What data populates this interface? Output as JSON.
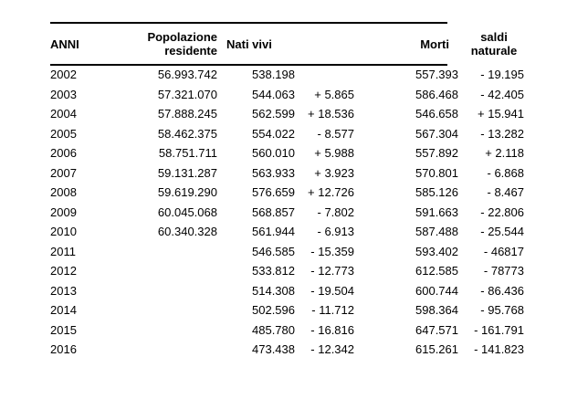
{
  "colors": {
    "background": "#ffffff",
    "text": "#000000",
    "rule": "#000000"
  },
  "table": {
    "headers": {
      "anni": "ANNI",
      "popolazione_line1": "Popolazione",
      "popolazione_line2": "residente",
      "nati_vivi": "Nati vivi",
      "variazione_nati": "",
      "morti": "Morti",
      "saldi_line1": "saldi",
      "saldi_line2": "naturale"
    },
    "rows": [
      {
        "anno": "2002",
        "popolazione": "56.993.742",
        "nati_vivi": "538.198",
        "variazione_nati": "",
        "morti": "557.393",
        "saldo_naturale": "- 19.195"
      },
      {
        "anno": "2003",
        "popolazione": "57.321.070",
        "nati_vivi": "544.063",
        "variazione_nati": "+ 5.865",
        "morti": "586.468",
        "saldo_naturale": "- 42.405"
      },
      {
        "anno": "2004",
        "popolazione": "57.888.245",
        "nati_vivi": "562.599",
        "variazione_nati": "+ 18.536",
        "morti": "546.658",
        "saldo_naturale": "+ 15.941"
      },
      {
        "anno": "2005",
        "popolazione": "58.462.375",
        "nati_vivi": "554.022",
        "variazione_nati": "- 8.577",
        "morti": "567.304",
        "saldo_naturale": "- 13.282"
      },
      {
        "anno": "2006",
        "popolazione": "58.751.711",
        "nati_vivi": "560.010",
        "variazione_nati": "+ 5.988",
        "morti": "557.892",
        "saldo_naturale": "+ 2.118"
      },
      {
        "anno": "2007",
        "popolazione": "59.131.287",
        "nati_vivi": "563.933",
        "variazione_nati": "+ 3.923",
        "morti": "570.801",
        "saldo_naturale": "- 6.868"
      },
      {
        "anno": "2008",
        "popolazione": "59.619.290",
        "nati_vivi": "576.659",
        "variazione_nati": "+ 12.726",
        "morti": "585.126",
        "saldo_naturale": "- 8.467"
      },
      {
        "anno": "2009",
        "popolazione": "60.045.068",
        "nati_vivi": "568.857",
        "variazione_nati": "- 7.802",
        "morti": "591.663",
        "saldo_naturale": "- 22.806"
      },
      {
        "anno": "2010",
        "popolazione": "60.340.328",
        "nati_vivi": "561.944",
        "variazione_nati": "- 6.913",
        "morti": "587.488",
        "saldo_naturale": "- 25.544"
      },
      {
        "anno": "2011",
        "popolazione": "",
        "nati_vivi": "546.585",
        "variazione_nati": "- 15.359",
        "morti": "593.402",
        "saldo_naturale": "- 46817"
      },
      {
        "anno": "2012",
        "popolazione": "",
        "nati_vivi": "533.812",
        "variazione_nati": "- 12.773",
        "morti": "612.585",
        "saldo_naturale": "- 78773"
      },
      {
        "anno": "2013",
        "popolazione": "",
        "nati_vivi": "514.308",
        "variazione_nati": "- 19.504",
        "morti": "600.744",
        "saldo_naturale": "- 86.436"
      },
      {
        "anno": "2014",
        "popolazione": "",
        "nati_vivi": "502.596",
        "variazione_nati": "- 11.712",
        "morti": "598.364",
        "saldo_naturale": "- 95.768"
      },
      {
        "anno": "2015",
        "popolazione": "",
        "nati_vivi": "485.780",
        "variazione_nati": "- 16.816",
        "morti": "647.571",
        "saldo_naturale": "- 161.791"
      },
      {
        "anno": "2016",
        "popolazione": "",
        "nati_vivi": "473.438",
        "variazione_nati": "- 12.342",
        "morti": "615.261",
        "saldo_naturale": "- 141.823"
      }
    ]
  }
}
